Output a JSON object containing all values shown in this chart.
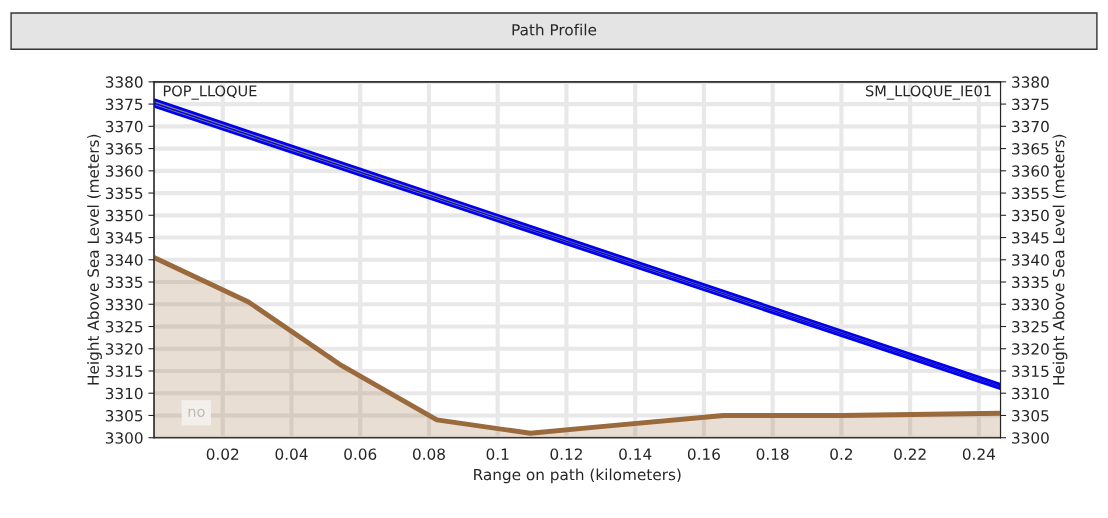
{
  "chart_data": {
    "type": "line",
    "title": "Path Profile",
    "xlabel": "Range on path (kilometers)",
    "ylabel": "Height Above Sea Level (meters)",
    "y2label": "Height Above Sea Level (meters)",
    "series": [
      {
        "type": "area",
        "color": "#9b6a3c",
        "x": [
          0,
          0.0275,
          0.054,
          0.0823,
          0.1095,
          0.13,
          0.1657,
          0.2,
          0.2463
        ],
        "values": [
          3340.5,
          3330.5,
          3316.5,
          3304,
          3301,
          3302.5,
          3305,
          3305,
          3305.5
        ]
      },
      {
        "color": "#0000ee",
        "x": [
          0,
          0.2463
        ],
        "values": [
          3375.2,
          3311.5
        ],
        "lower": [
          3374.5,
          3311
        ],
        "upper": [
          3376,
          3312
        ]
      }
    ],
    "xlim": [
      0,
      0.2463
    ],
    "xticks": [
      0.02,
      0.04,
      0.06,
      0.08,
      0.1,
      0.12,
      0.14,
      0.16,
      0.18,
      0.2,
      0.22,
      0.24
    ],
    "ylim": [
      3300,
      3380
    ],
    "yticks": [
      3300,
      3305,
      3310,
      3315,
      3320,
      3325,
      3330,
      3335,
      3340,
      3345,
      3350,
      3355,
      3360,
      3365,
      3370,
      3375,
      3380
    ],
    "y2lim": [
      3300,
      3380
    ],
    "y2ticks": [
      3300,
      3305,
      3310,
      3315,
      3320,
      3325,
      3330,
      3335,
      3340,
      3345,
      3350,
      3355,
      3360,
      3365,
      3370,
      3375,
      3380
    ],
    "grid": true,
    "legend": false,
    "annotations": [
      "POP_LLOQUE",
      "SM_LLOQUE_IE01",
      "no"
    ]
  }
}
